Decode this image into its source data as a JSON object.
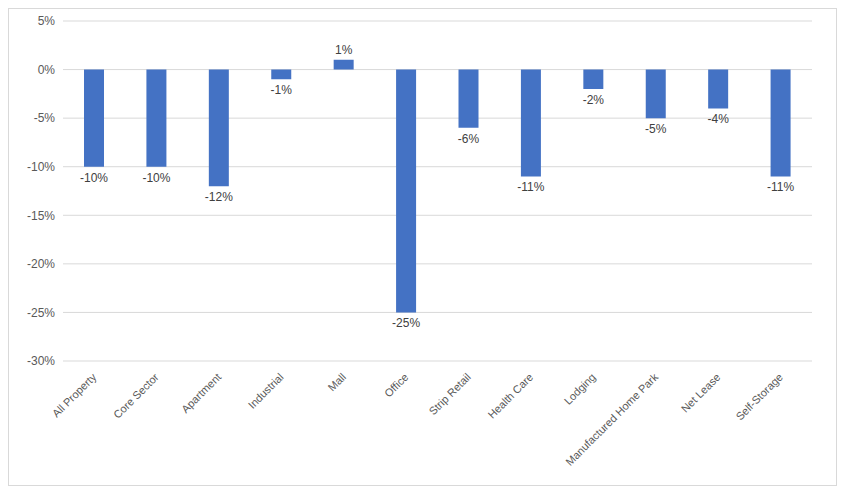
{
  "chart_data": {
    "type": "bar",
    "categories": [
      "All Property",
      "Core Sector",
      "Apartment",
      "Industrial",
      "Mall",
      "Office",
      "Strip Retail",
      "Health Care",
      "Lodging",
      "Manufactured Home Park",
      "Net Lease",
      "Self-Storage"
    ],
    "values": [
      -10,
      -10,
      -12,
      -1,
      1,
      -25,
      -6,
      -11,
      -2,
      -5,
      -4,
      -11
    ],
    "value_labels": [
      "-10%",
      "-10%",
      "-12%",
      "-1%",
      "1%",
      "-25%",
      "-6%",
      "-11%",
      "-2%",
      "-5%",
      "-4%",
      "-11%"
    ],
    "color": "#4472c4",
    "ylim": [
      -30,
      5
    ],
    "yticks": [
      {
        "value": 5,
        "label": "5%"
      },
      {
        "value": 0,
        "label": "0%"
      },
      {
        "value": -5,
        "label": "-5%"
      },
      {
        "value": -10,
        "label": "-10%"
      },
      {
        "value": -15,
        "label": "-15%"
      },
      {
        "value": -20,
        "label": "-20%"
      },
      {
        "value": -25,
        "label": "-25%"
      },
      {
        "value": -30,
        "label": "-30%"
      }
    ],
    "grid": true,
    "data_labels": true
  }
}
